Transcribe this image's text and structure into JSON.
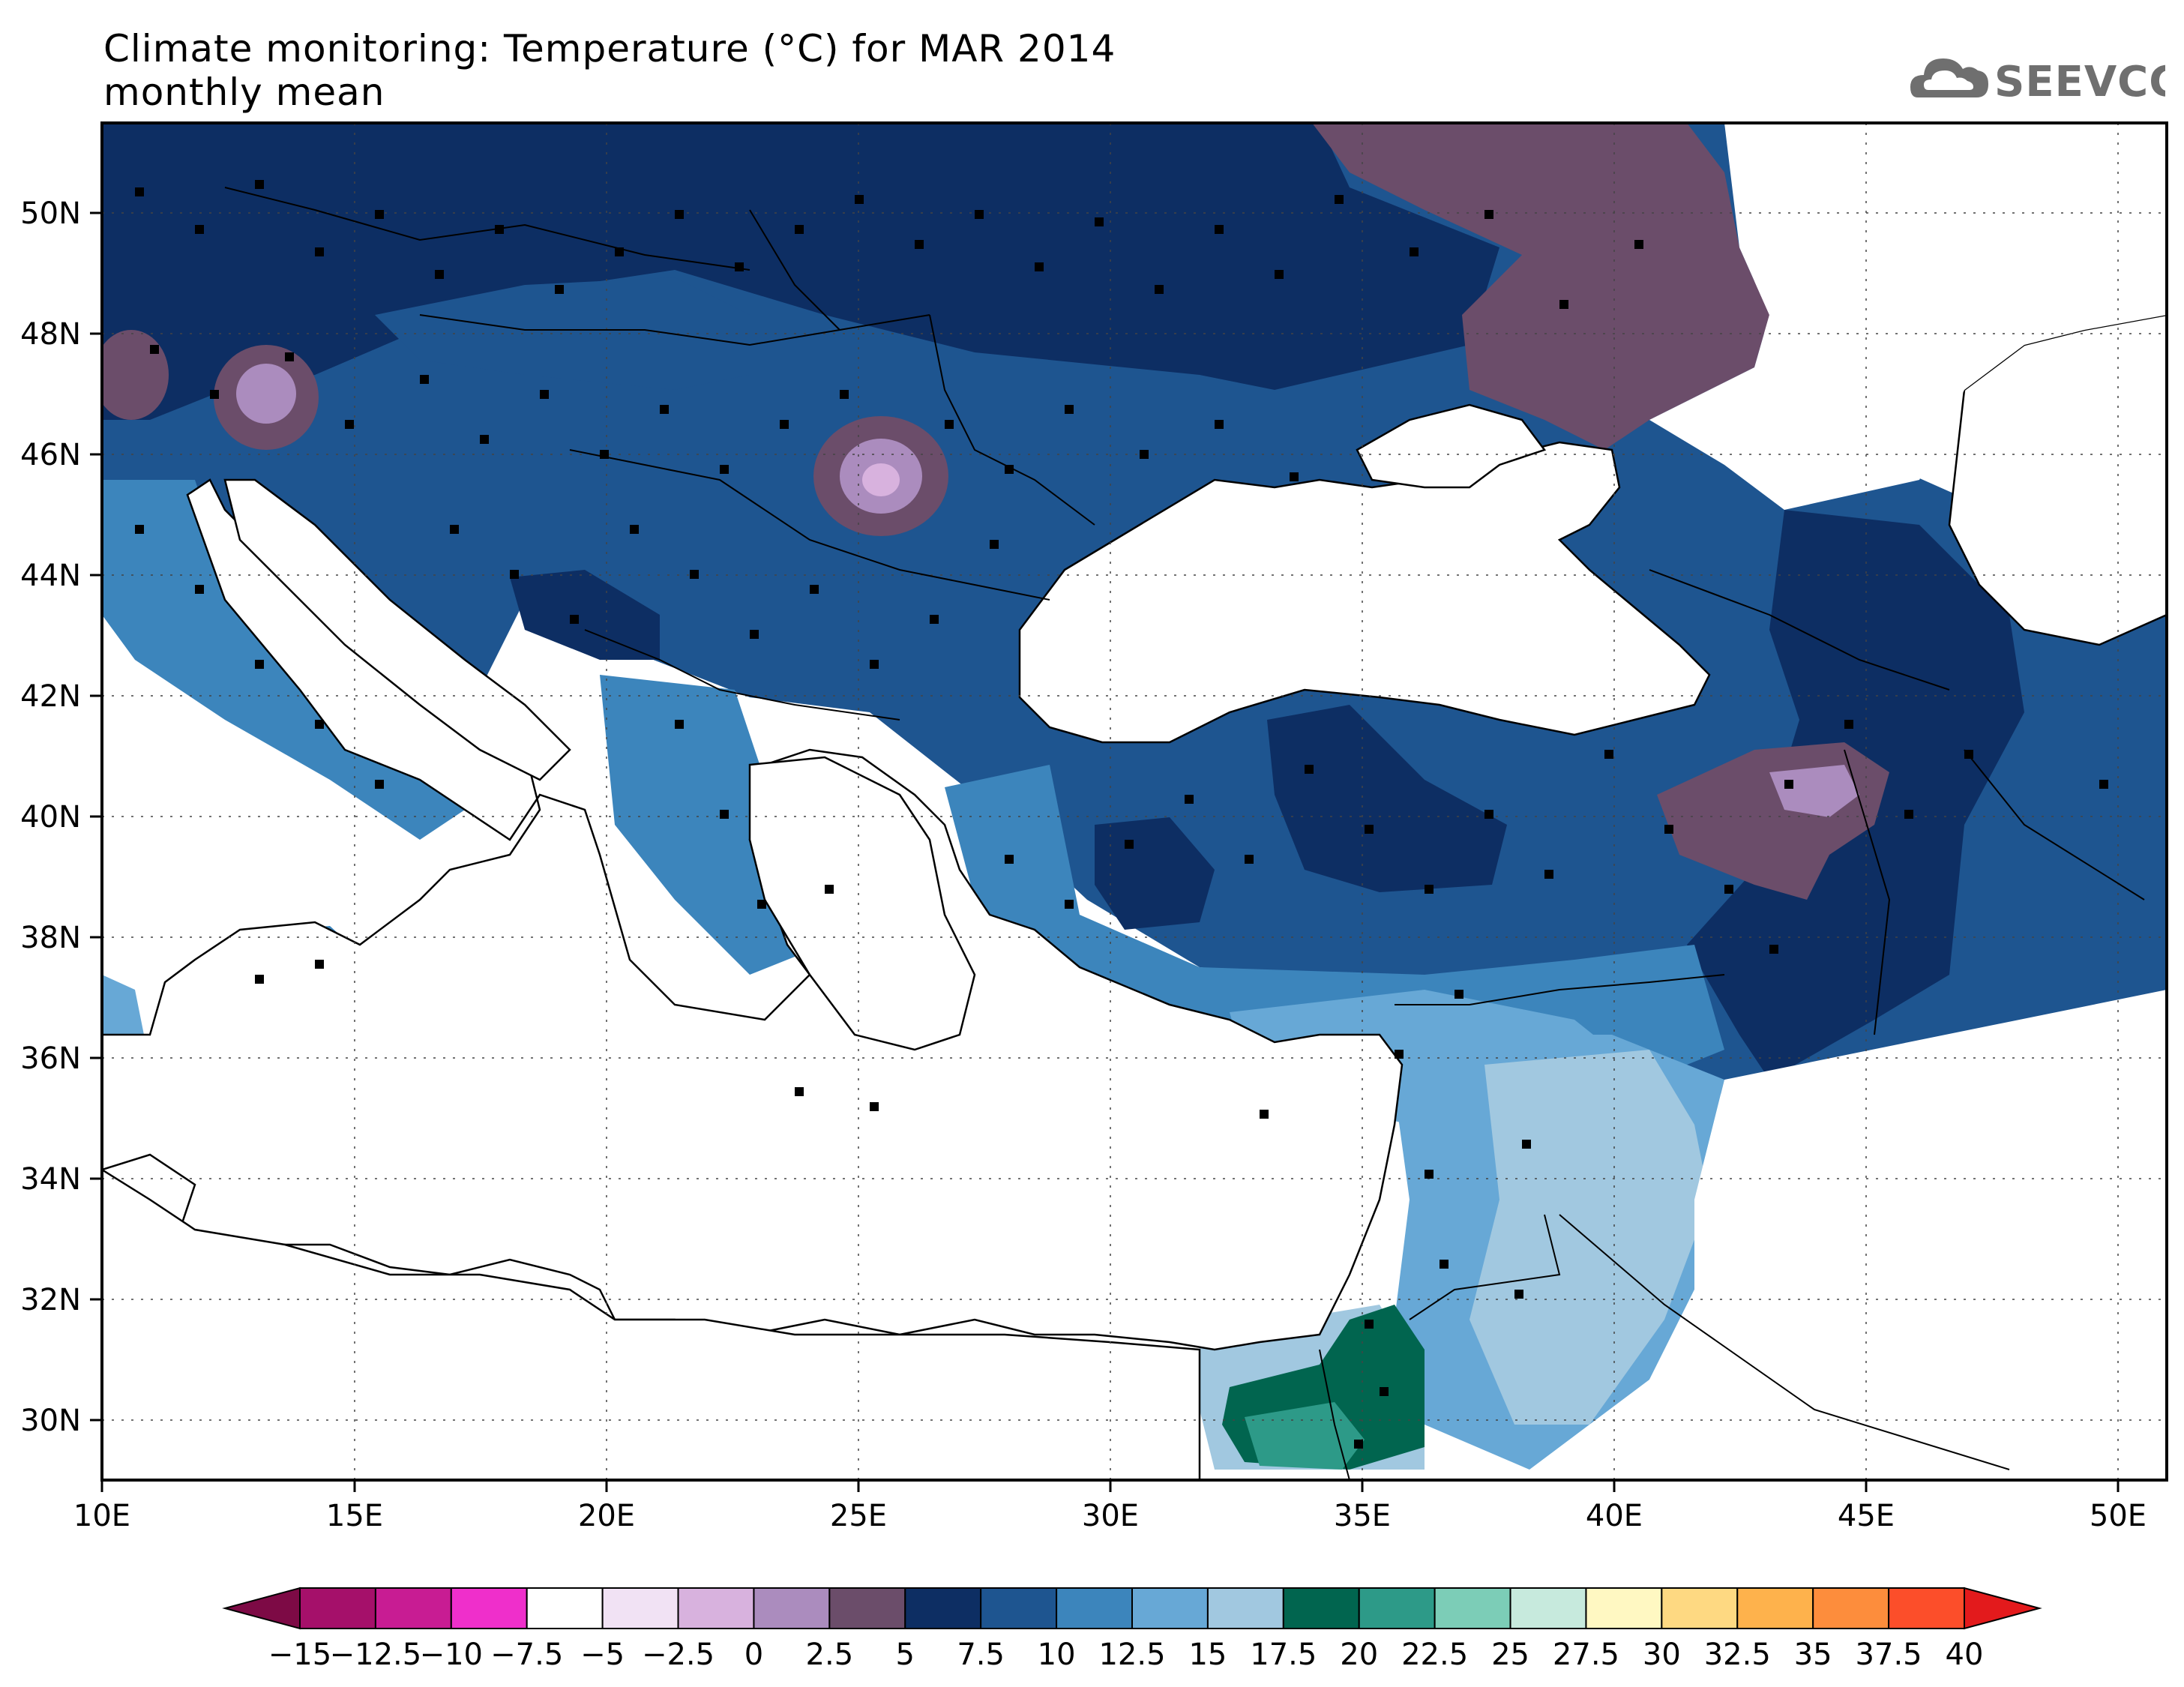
{
  "header": {
    "title_line1": "Climate monitoring: Temperature (°C) for MAR 2014",
    "title_line2": "monthly mean"
  },
  "logo": {
    "text": "SEEVCCC",
    "icon": "cloud-icon"
  },
  "map": {
    "lon_range": [
      10,
      51
    ],
    "lat_range": [
      29,
      51.5
    ],
    "lon_ticks": [
      "10E",
      "15E",
      "20E",
      "25E",
      "30E",
      "35E",
      "40E",
      "45E",
      "50E"
    ],
    "lat_ticks": [
      "30N",
      "32N",
      "34N",
      "36N",
      "38N",
      "40N",
      "42N",
      "44N",
      "46N",
      "48N",
      "50N"
    ]
  },
  "colorbar": {
    "labels": [
      "-15",
      "-12.5",
      "-10",
      "-7.5",
      "-5",
      "-2.5",
      "0",
      "2.5",
      "5",
      "7.5",
      "10",
      "12.5",
      "15",
      "17.5",
      "20",
      "22.5",
      "25",
      "27.5",
      "30",
      "32.5",
      "35",
      "37.5",
      "40"
    ],
    "colors": [
      "#7d0a45",
      "#a5106a",
      "#c81c93",
      "#ef2fcb",
      "#ffffff",
      "#f1e2f4",
      "#d8b2de",
      "#ab8cbe",
      "#6b4d6a",
      "#0d2e63",
      "#1e5590",
      "#3c85bc",
      "#67a8d6",
      "#a1c8e0",
      "#01654f",
      "#2d9a88",
      "#7ccdb7",
      "#c7eadd",
      "#fff8c2",
      "#fed982",
      "#feb24c",
      "#fd8d3c",
      "#fc4e2a",
      "#e31a1c"
    ]
  }
}
